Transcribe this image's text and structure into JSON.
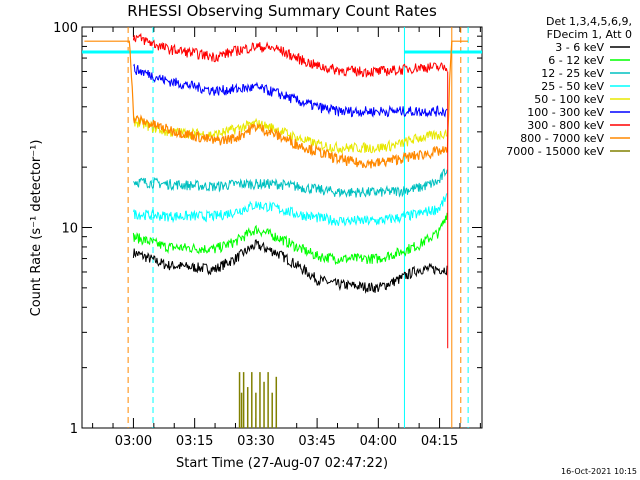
{
  "chart_data": {
    "type": "line",
    "title": "RHESSI Observing Summary Count Rates",
    "xlabel": "Start Time (27-Aug-07 02:47:22)",
    "ylabel": "Count Rate (s⁻¹ detector⁻¹)",
    "yscale": "log",
    "ylim": [
      1,
      100
    ],
    "xlim_minutes": [
      -12.6,
      85.4
    ],
    "x_ticks": [
      {
        "label": "03:00",
        "t": 0
      },
      {
        "label": "03:15",
        "t": 15
      },
      {
        "label": "03:30",
        "t": 30
      },
      {
        "label": "03:45",
        "t": 45
      },
      {
        "label": "04:00",
        "t": 60
      },
      {
        "label": "04:15",
        "t": 75
      }
    ],
    "y_ticks": [
      {
        "label": "1",
        "v": 1
      },
      {
        "label": "10",
        "v": 10
      },
      {
        "label": "100",
        "v": 100
      }
    ],
    "legend_header": [
      "Det 1,3,4,5,6,9,",
      "FDecim 1, Att 0"
    ],
    "legend_position": "right",
    "series": [
      {
        "name": "3 - 6 keV",
        "color": "#000000",
        "t": [
          0,
          8,
          20,
          25,
          30,
          35,
          40,
          45,
          50,
          55,
          60,
          65,
          70,
          75,
          77
        ],
        "values": [
          7.5,
          6.5,
          6.2,
          7.0,
          8.2,
          7.5,
          6.5,
          5.5,
          5.2,
          5.1,
          5.0,
          5.5,
          6.2,
          6.2,
          6.2
        ]
      },
      {
        "name": "6 - 12 keV",
        "color": "#00ff00",
        "t": [
          0,
          8,
          20,
          25,
          30,
          35,
          40,
          45,
          50,
          55,
          60,
          65,
          70,
          75,
          77
        ],
        "values": [
          9.0,
          8.0,
          7.8,
          8.5,
          9.8,
          9.0,
          8.0,
          7.2,
          7.0,
          7.0,
          7.0,
          7.5,
          8.2,
          9.5,
          12.0
        ]
      },
      {
        "name": "12 - 25 keV",
        "color": "#00c0c0",
        "t": [
          0,
          8,
          20,
          25,
          30,
          35,
          40,
          45,
          50,
          55,
          60,
          65,
          70,
          75,
          77
        ],
        "values": [
          17.0,
          16.5,
          16.0,
          16.5,
          16.5,
          16.5,
          16.0,
          15.5,
          15.0,
          15.0,
          15.0,
          15.2,
          15.8,
          17.0,
          20.0
        ]
      },
      {
        "name": "25 - 50 keV",
        "color": "#00ffff",
        "t": [
          0,
          8,
          20,
          25,
          30,
          35,
          40,
          45,
          50,
          55,
          60,
          65,
          70,
          75,
          77
        ],
        "values": [
          11.7,
          11.4,
          11.4,
          12.0,
          13.0,
          12.5,
          11.7,
          11.2,
          10.8,
          10.8,
          10.8,
          11.2,
          11.7,
          12.5,
          14.5
        ]
      },
      {
        "name": "50 - 100 keV",
        "color": "#e8e800",
        "t": [
          0,
          8,
          20,
          25,
          30,
          35,
          40,
          45,
          50,
          55,
          60,
          65,
          70,
          75,
          77
        ],
        "values": [
          34,
          30,
          29,
          31,
          33,
          31,
          28,
          26,
          25,
          25,
          25,
          26,
          28,
          29,
          30
        ]
      },
      {
        "name": "100 - 300 keV",
        "color": "#0000ff",
        "t": [
          0,
          8,
          20,
          25,
          30,
          35,
          40,
          45,
          50,
          55,
          60,
          65,
          70,
          75,
          77
        ],
        "values": [
          62,
          54,
          48,
          49,
          50,
          47,
          43,
          40,
          38,
          38,
          38,
          38,
          38,
          38,
          38
        ]
      },
      {
        "name": "300 - 800 keV",
        "color": "#ff0000",
        "t": [
          0,
          8,
          20,
          25,
          30,
          35,
          40,
          45,
          50,
          55,
          60,
          65,
          70,
          75,
          77
        ],
        "values": [
          90,
          78,
          71,
          76,
          80,
          78,
          70,
          64,
          61,
          60,
          60,
          61,
          63,
          63,
          63
        ]
      },
      {
        "name": "800 - 7000 keV",
        "color": "#ff8800",
        "t": [
          -12,
          -1,
          0,
          8,
          20,
          25,
          30,
          35,
          40,
          45,
          50,
          55,
          60,
          65,
          70,
          75,
          77,
          78,
          82
        ],
        "values": [
          85,
          85,
          35,
          31,
          27,
          28,
          32,
          29,
          26,
          24,
          22,
          21,
          21,
          22,
          23,
          24,
          24,
          85,
          85
        ]
      },
      {
        "name": "7000 - 15000 keV",
        "color": "#808000",
        "t": [
          26,
          26.5,
          27,
          28,
          29,
          30,
          31,
          32,
          33,
          34,
          35
        ],
        "values": [
          1.9,
          1.5,
          1.9,
          1.6,
          1.9,
          1.5,
          1.9,
          1.7,
          1.9,
          1.5,
          1.8
        ]
      }
    ],
    "vertical_markers": [
      {
        "t": -1.3,
        "color": "#ff8800",
        "dashed": true
      },
      {
        "t": 4.8,
        "color": "#00ffff",
        "dashed": true
      },
      {
        "t": 66.4,
        "color": "#00ffff",
        "dashed": false
      },
      {
        "t": 78.0,
        "color": "#ff8800",
        "dashed": false
      },
      {
        "t": 80.2,
        "color": "#ff8800",
        "dashed": true
      },
      {
        "t": 82.0,
        "color": "#00ffff",
        "dashed": true
      }
    ],
    "cyan_level": {
      "value": 75,
      "segments": [
        [
          -12.6,
          4.8
        ],
        [
          66.4,
          85.4
        ]
      ]
    },
    "timestamp": "16-Oct-2021 10:15"
  }
}
